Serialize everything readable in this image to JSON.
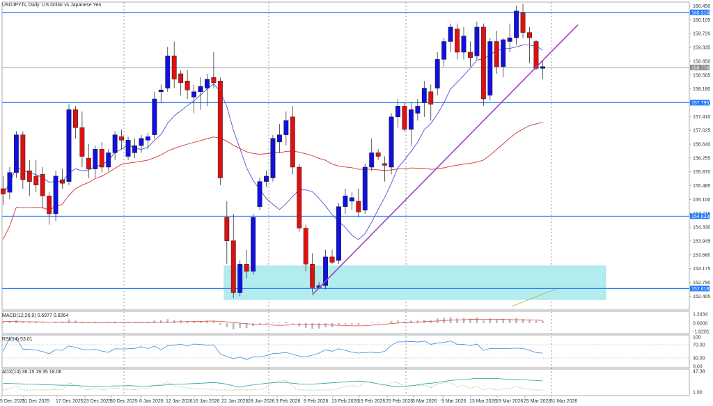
{
  "chart_data": {
    "type": "candlestick",
    "title": "USDJPY.fs, Daily:  US Dollar vs Japanese Yen",
    "ylim": [
      152.0,
      160.55
    ],
    "y_ticks": [
      "160.490",
      "160.105",
      "159.720",
      "159.335",
      "158.950",
      "158.565",
      "158.180",
      "157.795",
      "157.410",
      "157.025",
      "156.640",
      "156.255",
      "155.870",
      "155.485",
      "155.100",
      "154.715",
      "154.330",
      "153.945",
      "153.560",
      "153.175",
      "152.790",
      "152.405"
    ],
    "x_labels": [
      "5 Dec 2025",
      "11 Dec 2025",
      "17 Dec 2025",
      "23 Dec 2025",
      "30 Dec 2025",
      "6 Jan 2026",
      "12 Jan 2026",
      "16 Jan 2026",
      "22 Jan 2026",
      "28 Jan 2026",
      "3 Feb 2026",
      "9 Feb 2026",
      "13 Feb 2026",
      "19 Feb 2026",
      "25 Feb 2026",
      "3 Mar 2026",
      "9 Mar 2026",
      "13 Mar 2026",
      "19 Mar 2026",
      "25 Mar 2026",
      "31 Mar 2026"
    ],
    "colors": {
      "bull": "#1010e0",
      "bear": "#e01010",
      "level": "#1e78ff",
      "trend": "#a040c0",
      "ma_fast": "#5050d0",
      "ma_slow": "#d03030",
      "zone": "#b2ecef"
    },
    "candles": [
      {
        "o": 155.4,
        "h": 155.75,
        "l": 154.95,
        "c": 155.25
      },
      {
        "o": 155.3,
        "h": 156.0,
        "l": 155.1,
        "c": 155.85
      },
      {
        "o": 155.85,
        "h": 157.0,
        "l": 155.7,
        "c": 156.9
      },
      {
        "o": 156.9,
        "h": 157.0,
        "l": 155.4,
        "c": 155.65
      },
      {
        "o": 155.9,
        "h": 156.2,
        "l": 155.2,
        "c": 155.6
      },
      {
        "o": 155.75,
        "h": 156.2,
        "l": 155.3,
        "c": 155.5
      },
      {
        "o": 155.8,
        "h": 156.0,
        "l": 154.85,
        "c": 155.2
      },
      {
        "o": 155.2,
        "h": 155.3,
        "l": 154.4,
        "c": 154.7
      },
      {
        "o": 154.7,
        "h": 155.9,
        "l": 154.5,
        "c": 155.75
      },
      {
        "o": 155.65,
        "h": 155.95,
        "l": 155.4,
        "c": 155.55
      },
      {
        "o": 155.6,
        "h": 157.75,
        "l": 155.5,
        "c": 157.6
      },
      {
        "o": 157.6,
        "h": 157.7,
        "l": 156.8,
        "c": 157.1
      },
      {
        "o": 157.1,
        "h": 157.55,
        "l": 156.0,
        "c": 156.3
      },
      {
        "o": 156.25,
        "h": 156.65,
        "l": 155.7,
        "c": 155.95
      },
      {
        "o": 155.95,
        "h": 156.6,
        "l": 155.7,
        "c": 156.5
      },
      {
        "o": 156.5,
        "h": 156.7,
        "l": 155.85,
        "c": 156.0
      },
      {
        "o": 156.0,
        "h": 156.5,
        "l": 155.9,
        "c": 156.4
      },
      {
        "o": 156.4,
        "h": 157.0,
        "l": 156.2,
        "c": 156.9
      },
      {
        "o": 156.85,
        "h": 157.05,
        "l": 156.5,
        "c": 156.75
      },
      {
        "o": 156.3,
        "h": 156.85,
        "l": 156.2,
        "c": 156.75
      },
      {
        "o": 156.4,
        "h": 156.8,
        "l": 156.25,
        "c": 156.6
      },
      {
        "o": 156.6,
        "h": 156.9,
        "l": 156.4,
        "c": 156.8
      },
      {
        "o": 156.75,
        "h": 156.95,
        "l": 156.5,
        "c": 156.85
      },
      {
        "o": 156.9,
        "h": 158.1,
        "l": 156.8,
        "c": 157.9
      },
      {
        "o": 158.1,
        "h": 158.3,
        "l": 157.8,
        "c": 158.15
      },
      {
        "o": 158.2,
        "h": 159.35,
        "l": 158.1,
        "c": 159.1
      },
      {
        "o": 159.1,
        "h": 159.5,
        "l": 158.2,
        "c": 158.45
      },
      {
        "o": 158.6,
        "h": 158.7,
        "l": 158.0,
        "c": 158.35
      },
      {
        "o": 158.4,
        "h": 158.7,
        "l": 157.9,
        "c": 158.15
      },
      {
        "o": 157.95,
        "h": 158.3,
        "l": 157.5,
        "c": 158.1
      },
      {
        "o": 158.1,
        "h": 158.5,
        "l": 157.6,
        "c": 158.25
      },
      {
        "o": 158.2,
        "h": 158.6,
        "l": 157.7,
        "c": 158.45
      },
      {
        "o": 158.5,
        "h": 159.2,
        "l": 158.2,
        "c": 158.35
      },
      {
        "o": 158.4,
        "h": 158.5,
        "l": 155.5,
        "c": 155.7
      },
      {
        "o": 154.6,
        "h": 155.05,
        "l": 153.3,
        "c": 153.95
      },
      {
        "o": 153.95,
        "h": 154.7,
        "l": 152.35,
        "c": 152.5
      },
      {
        "o": 152.5,
        "h": 153.4,
        "l": 152.4,
        "c": 153.3
      },
      {
        "o": 153.3,
        "h": 153.7,
        "l": 152.9,
        "c": 153.1
      },
      {
        "o": 153.1,
        "h": 154.7,
        "l": 153.0,
        "c": 154.6
      },
      {
        "o": 154.9,
        "h": 155.7,
        "l": 154.8,
        "c": 155.6
      },
      {
        "o": 155.6,
        "h": 155.9,
        "l": 155.45,
        "c": 155.75
      },
      {
        "o": 155.7,
        "h": 156.9,
        "l": 155.6,
        "c": 156.8
      },
      {
        "o": 156.7,
        "h": 157.2,
        "l": 156.4,
        "c": 156.9
      },
      {
        "o": 156.9,
        "h": 157.55,
        "l": 156.6,
        "c": 157.3
      },
      {
        "o": 157.4,
        "h": 157.7,
        "l": 155.8,
        "c": 156.0
      },
      {
        "o": 156.0,
        "h": 156.1,
        "l": 154.2,
        "c": 154.3
      },
      {
        "o": 154.3,
        "h": 154.4,
        "l": 153.1,
        "c": 153.3
      },
      {
        "o": 153.3,
        "h": 153.6,
        "l": 152.5,
        "c": 152.65
      },
      {
        "o": 152.65,
        "h": 152.8,
        "l": 152.6,
        "c": 152.7
      },
      {
        "o": 152.7,
        "h": 153.7,
        "l": 152.6,
        "c": 153.5
      },
      {
        "o": 153.5,
        "h": 153.7,
        "l": 153.3,
        "c": 153.35
      },
      {
        "o": 153.4,
        "h": 155.0,
        "l": 153.3,
        "c": 154.9
      },
      {
        "o": 154.9,
        "h": 155.4,
        "l": 154.7,
        "c": 155.2
      },
      {
        "o": 155.05,
        "h": 155.3,
        "l": 154.8,
        "c": 155.15
      },
      {
        "o": 155.05,
        "h": 155.4,
        "l": 154.6,
        "c": 154.75
      },
      {
        "o": 154.8,
        "h": 156.1,
        "l": 154.7,
        "c": 156.0
      },
      {
        "o": 156.0,
        "h": 156.8,
        "l": 155.9,
        "c": 156.4
      },
      {
        "o": 156.4,
        "h": 156.5,
        "l": 156.2,
        "c": 156.3
      },
      {
        "o": 156.1,
        "h": 156.3,
        "l": 155.6,
        "c": 156.05
      },
      {
        "o": 156.0,
        "h": 157.5,
        "l": 155.8,
        "c": 157.4
      },
      {
        "o": 157.4,
        "h": 157.9,
        "l": 157.1,
        "c": 157.7
      },
      {
        "o": 157.7,
        "h": 157.8,
        "l": 157.0,
        "c": 157.05
      },
      {
        "o": 157.05,
        "h": 157.8,
        "l": 156.6,
        "c": 157.6
      },
      {
        "o": 157.5,
        "h": 157.9,
        "l": 157.3,
        "c": 157.7
      },
      {
        "o": 157.8,
        "h": 158.4,
        "l": 157.4,
        "c": 158.2
      },
      {
        "o": 158.1,
        "h": 158.3,
        "l": 157.3,
        "c": 157.75
      },
      {
        "o": 158.2,
        "h": 159.2,
        "l": 158.0,
        "c": 159.0
      },
      {
        "o": 159.0,
        "h": 159.6,
        "l": 158.8,
        "c": 159.5
      },
      {
        "o": 159.5,
        "h": 160.0,
        "l": 159.2,
        "c": 159.9
      },
      {
        "o": 159.85,
        "h": 160.0,
        "l": 159.0,
        "c": 159.2
      },
      {
        "o": 159.2,
        "h": 159.9,
        "l": 159.0,
        "c": 159.65
      },
      {
        "o": 159.2,
        "h": 159.5,
        "l": 158.8,
        "c": 159.05
      },
      {
        "o": 159.1,
        "h": 160.05,
        "l": 159.0,
        "c": 159.9
      },
      {
        "o": 159.9,
        "h": 160.0,
        "l": 157.7,
        "c": 157.9
      },
      {
        "o": 158.0,
        "h": 159.6,
        "l": 157.85,
        "c": 159.5
      },
      {
        "o": 159.5,
        "h": 159.8,
        "l": 158.6,
        "c": 158.8
      },
      {
        "o": 158.8,
        "h": 159.6,
        "l": 158.5,
        "c": 159.55
      },
      {
        "o": 159.5,
        "h": 160.0,
        "l": 159.2,
        "c": 159.6
      },
      {
        "o": 159.6,
        "h": 160.5,
        "l": 159.4,
        "c": 160.35
      },
      {
        "o": 160.3,
        "h": 160.55,
        "l": 159.6,
        "c": 159.75
      },
      {
        "o": 159.75,
        "h": 159.9,
        "l": 158.9,
        "c": 159.6
      },
      {
        "o": 159.5,
        "h": 159.55,
        "l": 158.7,
        "c": 158.75
      },
      {
        "o": 158.75,
        "h": 158.95,
        "l": 158.45,
        "c": 158.8
      }
    ],
    "level_lines": [
      {
        "value": 160.31,
        "label": "160.315"
      },
      {
        "value": 157.795,
        "label": "157.795"
      },
      {
        "value": 154.633,
        "label": "154.633"
      },
      {
        "value": 152.618,
        "label": "152.618"
      }
    ],
    "price_line": {
      "value": 158.776,
      "label": "158.776"
    },
    "zone": {
      "from_index": 34,
      "to_index": 95,
      "low": 152.31,
      "high": 153.25
    },
    "trendline": {
      "from_index": 47,
      "from_value": 152.45,
      "to_index": 87,
      "to_value": 159.9
    },
    "indicators": [
      {
        "name": "MACD",
        "label": "MACD(12,26,9) 0.6977 0.8264",
        "ticks": [
          "1.2434",
          "0.0000",
          "-1.0201"
        ]
      },
      {
        "name": "RSI",
        "label": "RSI(14) 53.01",
        "ticks": [
          "100",
          "70.00",
          "30.00",
          "0.00"
        ]
      },
      {
        "name": "ADX",
        "label": "ADX(14) 36.15 19.35 18.06",
        "ticks": [
          "47.38",
          "1.00"
        ]
      }
    ]
  }
}
